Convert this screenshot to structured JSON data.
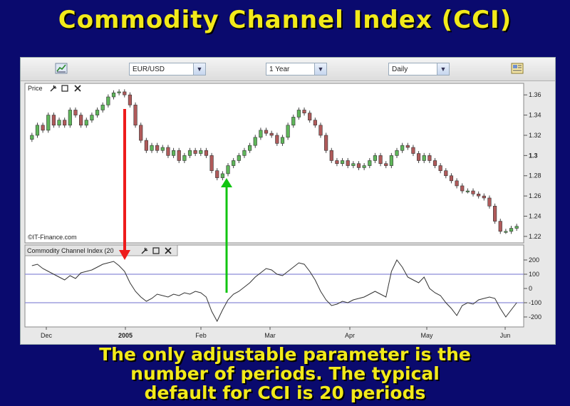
{
  "slide": {
    "title": "Commodity Channel Index (CCI)",
    "caption_lines": [
      "The only adjustable parameter is the",
      "number of periods. The typical",
      "default for CCI is 20 periods"
    ]
  },
  "toolbar": {
    "symbol": "EUR/USD",
    "range": "1 Year",
    "interval": "Daily",
    "chart_icon": "chart-type-icon",
    "settings_icon": "chart-settings-icon"
  },
  "price_pane": {
    "label": "Price",
    "watermark": "©IT-Finance.com",
    "tools": [
      "wrench-icon",
      "maximize-icon",
      "close-icon"
    ]
  },
  "cci_pane": {
    "label": "Commodity Channel Index (20",
    "tools": [
      "wrench-icon",
      "maximize-icon",
      "close-icon"
    ]
  },
  "colors": {
    "background": "#0a0a6e",
    "title_yellow": "#f2ea1a",
    "bull_candle": "#5fb65a",
    "bear_candle": "#b05a5a",
    "sell_arrow": "#ee1c1c",
    "buy_arrow": "#11c511",
    "level_line": "#8c8cd6"
  },
  "chart_data": [
    {
      "type": "line",
      "title": "Price",
      "ylim": [
        1.215,
        1.37
      ],
      "y_ticks": [
        "1.36",
        "1.34",
        "1.32",
        "1.3",
        "1.28",
        "1.26",
        "1.24",
        "1.22"
      ],
      "x_ticks": [
        "Dec",
        "2005",
        "Feb",
        "Mar",
        "Apr",
        "May",
        "Jun"
      ],
      "series": [
        {
          "values": [
            1.32,
            1.33,
            1.325,
            1.34,
            1.33,
            1.335,
            1.33,
            1.345,
            1.34,
            1.33,
            1.335,
            1.34,
            1.345,
            1.35,
            1.358,
            1.362,
            1.363,
            1.36,
            1.35,
            1.33,
            1.315,
            1.305,
            1.31,
            1.305,
            1.308,
            1.3,
            1.305,
            1.295,
            1.3,
            1.305,
            1.302,
            1.305,
            1.3,
            1.285,
            1.278,
            1.282,
            1.29,
            1.295,
            1.3,
            1.305,
            1.31,
            1.318,
            1.325,
            1.322,
            1.32,
            1.312,
            1.318,
            1.33,
            1.338,
            1.345,
            1.342,
            1.335,
            1.33,
            1.32,
            1.305,
            1.295,
            1.292,
            1.295,
            1.29,
            1.292,
            1.288,
            1.29,
            1.295,
            1.3,
            1.292,
            1.29,
            1.3,
            1.305,
            1.31,
            1.308,
            1.302,
            1.295,
            1.3,
            1.295,
            1.29,
            1.285,
            1.28,
            1.275,
            1.27,
            1.265,
            1.265,
            1.262,
            1.26,
            1.258,
            1.25,
            1.235,
            1.225,
            1.225,
            1.228,
            1.23
          ]
        }
      ]
    },
    {
      "type": "line",
      "title": "Commodity Channel Index (20",
      "ylim": [
        -260,
        230
      ],
      "y_ticks": [
        "200",
        "100",
        "0",
        "-100",
        "-200"
      ],
      "reference_lines": [
        100,
        -100
      ],
      "series": [
        {
          "values": [
            160,
            170,
            140,
            120,
            100,
            80,
            60,
            90,
            70,
            110,
            120,
            130,
            150,
            170,
            180,
            190,
            160,
            120,
            40,
            -20,
            -60,
            -90,
            -70,
            -40,
            -50,
            -60,
            -40,
            -50,
            -30,
            -40,
            -20,
            -30,
            -60,
            -160,
            -230,
            -150,
            -80,
            -40,
            -20,
            10,
            40,
            80,
            110,
            140,
            130,
            100,
            90,
            120,
            150,
            180,
            170,
            120,
            60,
            -20,
            -80,
            -120,
            -110,
            -90,
            -100,
            -80,
            -70,
            -60,
            -40,
            -20,
            -40,
            -60,
            120,
            200,
            150,
            80,
            60,
            40,
            80,
            0,
            -30,
            -50,
            -100,
            -140,
            -190,
            -120,
            -100,
            -110,
            -80,
            -70,
            -60,
            -70,
            -140,
            -200,
            -150,
            -100
          ]
        }
      ]
    }
  ]
}
